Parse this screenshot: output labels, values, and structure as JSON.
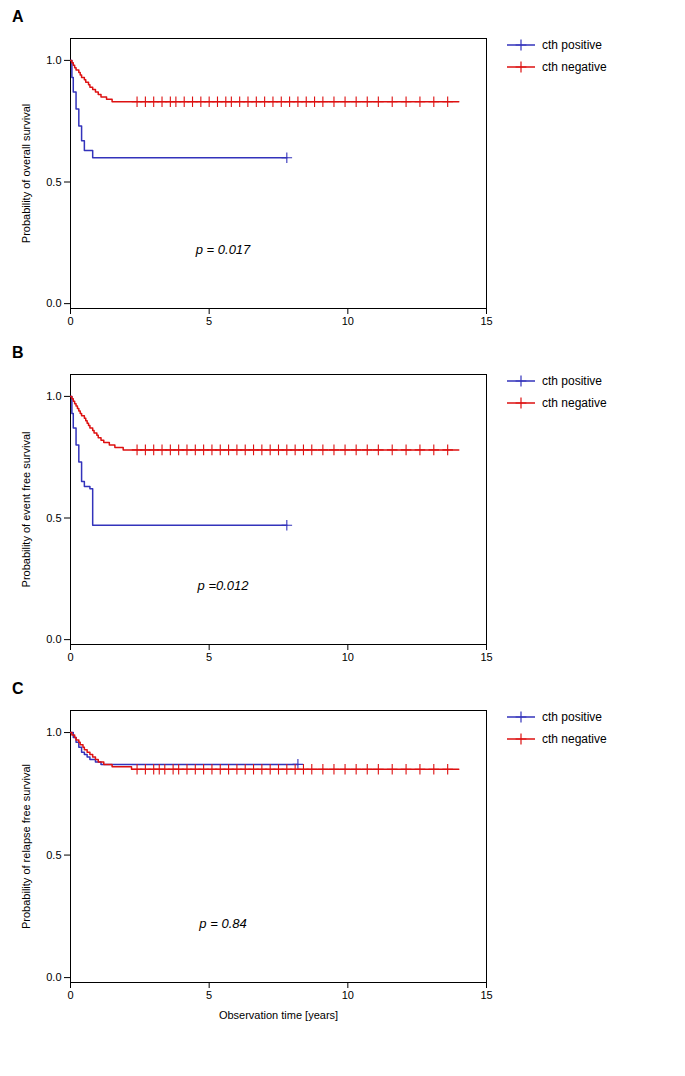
{
  "chart_data": [
    {
      "type": "step",
      "title": "A",
      "ylabel": "Probability of overall survival",
      "xlim": [
        0,
        15
      ],
      "ylim": [
        -0.02,
        1.09
      ],
      "xticks": [
        0,
        5,
        10,
        15
      ],
      "yticks": [
        {
          "value": 0.0,
          "label": "0.0"
        },
        0.5,
        {
          "value": 1.0,
          "label": "1.0"
        }
      ],
      "grid": false,
      "legend": "right",
      "annotations": [
        {
          "x": 5.5,
          "y": 0.22,
          "text": "p = 0.017"
        }
      ],
      "series": [
        {
          "name": "cth positive",
          "color": "#3333bb",
          "marker": "plus",
          "x": [
            0,
            0.05,
            0.1,
            0.2,
            0.3,
            0.4,
            0.5,
            0.6,
            0.7,
            0.8,
            0.9,
            1.0,
            1.1,
            1.2,
            1.3,
            1.5,
            1.8,
            2.1,
            7.8
          ],
          "values": [
            1.0,
            0.93,
            0.87,
            0.8,
            0.73,
            0.67,
            0.63,
            0.63,
            0.63,
            0.6,
            0.6,
            0.6,
            0.6,
            0.6,
            0.6,
            0.6,
            0.6,
            0.6,
            0.6
          ],
          "censor_x": [
            7.8
          ],
          "censor_y": [
            0.6
          ]
        },
        {
          "name": "cth negative",
          "color": "#dd1111",
          "marker": "plus",
          "x": [
            0,
            0.05,
            0.1,
            0.15,
            0.2,
            0.25,
            0.3,
            0.35,
            0.4,
            0.45,
            0.5,
            0.55,
            0.6,
            0.65,
            0.7,
            0.75,
            0.8,
            0.85,
            0.9,
            0.95,
            1.0,
            1.1,
            1.2,
            1.3,
            1.4,
            1.5,
            1.7,
            2.0,
            2.3,
            14.0
          ],
          "values": [
            1.0,
            0.99,
            0.98,
            0.97,
            0.96,
            0.96,
            0.95,
            0.94,
            0.93,
            0.93,
            0.92,
            0.91,
            0.91,
            0.9,
            0.89,
            0.89,
            0.88,
            0.88,
            0.87,
            0.87,
            0.86,
            0.85,
            0.85,
            0.84,
            0.84,
            0.83,
            0.83,
            0.83,
            0.83,
            0.83
          ],
          "censor_x": [
            2.4,
            2.7,
            3.0,
            3.3,
            3.6,
            3.8,
            4.1,
            4.4,
            4.7,
            5.0,
            5.3,
            5.6,
            5.8,
            6.1,
            6.4,
            6.7,
            7.0,
            7.3,
            7.6,
            7.9,
            8.2,
            8.5,
            8.8,
            9.1,
            9.5,
            9.9,
            10.3,
            10.7,
            11.1,
            11.6,
            12.1,
            12.6,
            13.1,
            13.6
          ],
          "censor_y": [
            0.83,
            0.83,
            0.83,
            0.83,
            0.83,
            0.83,
            0.83,
            0.83,
            0.83,
            0.83,
            0.83,
            0.83,
            0.83,
            0.83,
            0.83,
            0.83,
            0.83,
            0.83,
            0.83,
            0.83,
            0.83,
            0.83,
            0.83,
            0.83,
            0.83,
            0.83,
            0.83,
            0.83,
            0.83,
            0.83,
            0.83,
            0.83,
            0.83,
            0.83
          ]
        }
      ]
    },
    {
      "type": "step",
      "title": "B",
      "ylabel": "Probability of event free survival",
      "xlim": [
        0,
        15
      ],
      "ylim": [
        -0.02,
        1.09
      ],
      "xticks": [
        0,
        5,
        10,
        15
      ],
      "yticks": [
        {
          "value": 0.0,
          "label": "0.0"
        },
        0.5,
        {
          "value": 1.0,
          "label": "1.0"
        }
      ],
      "grid": false,
      "legend": "right",
      "annotations": [
        {
          "x": 5.5,
          "y": 0.22,
          "text": "p =0.012"
        }
      ],
      "series": [
        {
          "name": "cth positive",
          "color": "#3333bb",
          "marker": "plus",
          "x": [
            0,
            0.05,
            0.1,
            0.2,
            0.3,
            0.4,
            0.5,
            0.6,
            0.7,
            0.8,
            0.9,
            1.0,
            1.1,
            1.3,
            7.8
          ],
          "values": [
            1.0,
            0.93,
            0.87,
            0.8,
            0.73,
            0.65,
            0.63,
            0.63,
            0.62,
            0.47,
            0.47,
            0.47,
            0.47,
            0.47,
            0.47
          ],
          "censor_x": [
            7.8
          ],
          "censor_y": [
            0.47
          ]
        },
        {
          "name": "cth negative",
          "color": "#dd1111",
          "marker": "plus",
          "x": [
            0,
            0.05,
            0.1,
            0.15,
            0.2,
            0.25,
            0.3,
            0.35,
            0.4,
            0.45,
            0.5,
            0.55,
            0.6,
            0.65,
            0.7,
            0.75,
            0.8,
            0.85,
            0.9,
            0.95,
            1.0,
            1.1,
            1.2,
            1.4,
            1.6,
            1.9,
            2.2,
            14.0
          ],
          "values": [
            1.0,
            0.99,
            0.98,
            0.97,
            0.96,
            0.95,
            0.94,
            0.93,
            0.92,
            0.92,
            0.91,
            0.9,
            0.89,
            0.88,
            0.87,
            0.87,
            0.86,
            0.85,
            0.85,
            0.84,
            0.83,
            0.82,
            0.81,
            0.8,
            0.79,
            0.78,
            0.78,
            0.78
          ],
          "censor_x": [
            2.4,
            2.7,
            3.0,
            3.3,
            3.6,
            3.9,
            4.2,
            4.5,
            4.8,
            5.1,
            5.4,
            5.7,
            6.0,
            6.3,
            6.6,
            6.9,
            7.2,
            7.5,
            7.8,
            8.1,
            8.4,
            8.7,
            9.1,
            9.5,
            9.9,
            10.3,
            10.7,
            11.1,
            11.6,
            12.1,
            12.6,
            13.1,
            13.6
          ],
          "censor_y": [
            0.78,
            0.78,
            0.78,
            0.78,
            0.78,
            0.78,
            0.78,
            0.78,
            0.78,
            0.78,
            0.78,
            0.78,
            0.78,
            0.78,
            0.78,
            0.78,
            0.78,
            0.78,
            0.78,
            0.78,
            0.78,
            0.78,
            0.78,
            0.78,
            0.78,
            0.78,
            0.78,
            0.78,
            0.78,
            0.78,
            0.78,
            0.78,
            0.78
          ]
        }
      ]
    },
    {
      "type": "step",
      "title": "C",
      "ylabel": "Probability of relapse free survival",
      "xlabel": "Observation time [years]",
      "xlim": [
        0,
        15
      ],
      "ylim": [
        -0.02,
        1.09
      ],
      "xticks": [
        0,
        5,
        10,
        15
      ],
      "yticks": [
        {
          "value": 0.0,
          "label": "0.0"
        },
        0.5,
        {
          "value": 1.0,
          "label": "1.0"
        }
      ],
      "grid": false,
      "legend": "right",
      "annotations": [
        {
          "x": 5.5,
          "y": 0.22,
          "text": "p = 0.84"
        }
      ],
      "series": [
        {
          "name": "cth positive",
          "color": "#3333bb",
          "marker": "plus",
          "x": [
            0,
            0.05,
            0.1,
            0.2,
            0.3,
            0.4,
            0.5,
            0.6,
            0.7,
            0.9,
            1.1,
            1.5,
            2.0,
            8.2
          ],
          "values": [
            1.0,
            1.0,
            0.98,
            0.96,
            0.94,
            0.92,
            0.91,
            0.9,
            0.89,
            0.88,
            0.87,
            0.87,
            0.87,
            0.87
          ],
          "censor_x": [
            8.2
          ],
          "censor_y": [
            0.87
          ]
        },
        {
          "name": "cth negative",
          "color": "#dd1111",
          "marker": "plus",
          "x": [
            0,
            0.05,
            0.1,
            0.15,
            0.2,
            0.25,
            0.3,
            0.35,
            0.4,
            0.45,
            0.5,
            0.55,
            0.6,
            0.7,
            0.8,
            0.9,
            1.0,
            1.2,
            1.5,
            1.8,
            2.2,
            14.0
          ],
          "values": [
            1.0,
            0.99,
            0.99,
            0.98,
            0.97,
            0.97,
            0.96,
            0.95,
            0.95,
            0.94,
            0.93,
            0.93,
            0.92,
            0.91,
            0.9,
            0.89,
            0.88,
            0.87,
            0.86,
            0.86,
            0.85,
            0.85
          ],
          "censor_x": [
            2.4,
            2.7,
            3.0,
            3.2,
            3.4,
            3.7,
            3.9,
            4.2,
            4.5,
            4.8,
            5.1,
            5.4,
            5.7,
            6.0,
            6.3,
            6.6,
            6.9,
            7.2,
            7.5,
            7.8,
            8.1,
            8.4,
            8.7,
            9.1,
            9.5,
            9.9,
            10.3,
            10.7,
            11.1,
            11.6,
            12.1,
            12.6,
            13.1,
            13.6
          ],
          "censor_y": [
            0.85,
            0.85,
            0.85,
            0.85,
            0.85,
            0.85,
            0.85,
            0.85,
            0.85,
            0.85,
            0.85,
            0.85,
            0.85,
            0.85,
            0.85,
            0.85,
            0.85,
            0.85,
            0.85,
            0.85,
            0.85,
            0.85,
            0.85,
            0.85,
            0.85,
            0.85,
            0.85,
            0.85,
            0.85,
            0.85,
            0.85,
            0.85,
            0.85,
            0.85
          ]
        }
      ]
    }
  ]
}
